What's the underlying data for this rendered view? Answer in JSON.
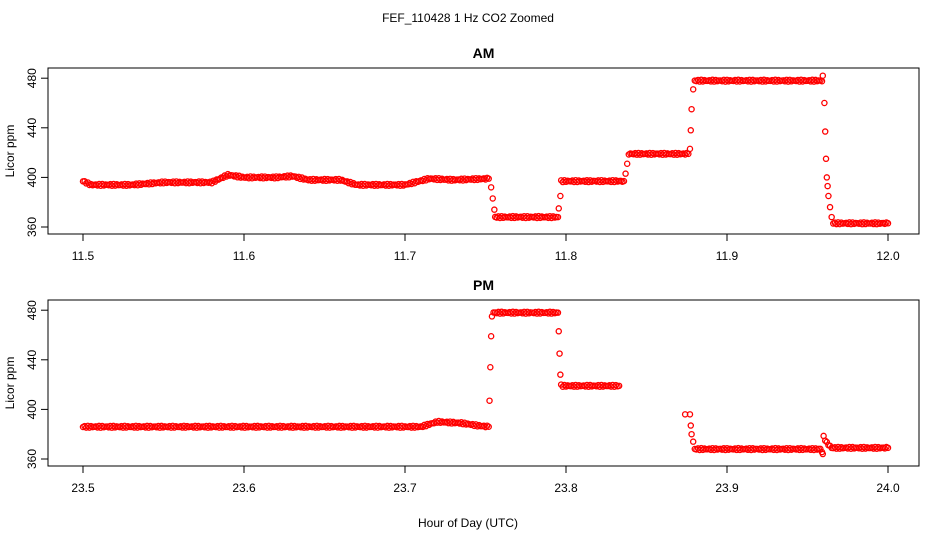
{
  "title": "FEF_110428  1 Hz CO2 Zoomed",
  "xlabel": "Hour of Day (UTC)",
  "chart_data": [
    {
      "type": "scatter",
      "title": "AM",
      "ylabel": "Licor ppm",
      "xlim": [
        11.5,
        12.0
      ],
      "ylim": [
        360,
        485
      ],
      "x_ticks": [
        "11.5",
        "11.6",
        "11.7",
        "11.8",
        "11.9",
        "12.0"
      ],
      "y_ticks": [
        "360",
        "400",
        "440",
        "480"
      ],
      "marker_color": "#ff0000",
      "series": [
        {
          "segments": [
            {
              "x": [
                11.5,
                11.505,
                11.53,
                11.55,
                11.58,
                11.59,
                11.6,
                11.62,
                11.63,
                11.64,
                11.66,
                11.67,
                11.7,
                11.715,
                11.73,
                11.752
              ],
              "y": [
                397,
                394,
                394,
                396,
                396,
                402,
                400,
                400,
                401,
                398,
                398,
                394,
                394,
                399,
                398,
                399
              ]
            },
            {
              "x": [
                11.7535,
                11.7545,
                11.7555
              ],
              "y": [
                392,
                383,
                374
              ]
            },
            {
              "x": [
                11.756,
                11.795
              ],
              "y": [
                368,
                368
              ]
            },
            {
              "x": [
                11.7955,
                11.7965
              ],
              "y": [
                375,
                385
              ]
            },
            {
              "x": [
                11.797,
                11.836
              ],
              "y": [
                397,
                397
              ]
            },
            {
              "x": [
                11.837,
                11.838
              ],
              "y": [
                403,
                411
              ]
            },
            {
              "x": [
                11.839,
                11.876
              ],
              "y": [
                419,
                419
              ]
            },
            {
              "x": [
                11.877,
                11.8775,
                11.878,
                11.879
              ],
              "y": [
                423,
                438,
                455,
                471
              ]
            },
            {
              "x": [
                11.88,
                11.959,
                11.9595
              ],
              "y": [
                478,
                478,
                482
              ]
            },
            {
              "x": [
                11.9605,
                11.961,
                11.9615,
                11.962,
                11.9625,
                11.963,
                11.964,
                11.965
              ],
              "y": [
                460,
                437,
                415,
                400,
                393,
                385,
                376,
                368
              ]
            },
            {
              "x": [
                11.966,
                12.0
              ],
              "y": [
                363,
                363
              ]
            }
          ]
        }
      ]
    },
    {
      "type": "scatter",
      "title": "PM",
      "ylabel": "Licor ppm",
      "xlim": [
        23.5,
        24.0
      ],
      "ylim": [
        360,
        485
      ],
      "x_ticks": [
        "23.5",
        "23.6",
        "23.7",
        "23.8",
        "23.9",
        "24.0"
      ],
      "y_ticks": [
        "360",
        "400",
        "440",
        "480"
      ],
      "marker_color": "#ff0000",
      "series": [
        {
          "segments": [
            {
              "x": [
                23.5,
                23.7,
                23.71,
                23.72,
                23.735,
                23.745,
                23.752
              ],
              "y": [
                386,
                386,
                386,
                390,
                389,
                387,
                386
              ]
            },
            {
              "x": [
                23.7525,
                23.753,
                23.7535,
                23.754
              ],
              "y": [
                407,
                434,
                459,
                475
              ]
            },
            {
              "x": [
                23.755,
                23.795
              ],
              "y": [
                478,
                478
              ]
            },
            {
              "x": [
                23.7955,
                23.796,
                23.7965,
                23.797
              ],
              "y": [
                463,
                445,
                428,
                420
              ]
            },
            {
              "x": [
                23.798,
                23.833
              ],
              "y": [
                419,
                419
              ]
            },
            {
              "x": [
                23.874,
                23.877,
                23.8775,
                23.878,
                23.879
              ],
              "y": [
                396,
                396,
                387,
                380,
                374
              ]
            },
            {
              "x": [
                23.88,
                23.958,
                23.959,
                23.9595
              ],
              "y": [
                368,
                368,
                366,
                364
              ]
            },
            {
              "x": [
                23.96,
                23.962,
                23.965,
                24.0
              ],
              "y": [
                378,
                373,
                369,
                369
              ]
            }
          ]
        }
      ]
    }
  ]
}
